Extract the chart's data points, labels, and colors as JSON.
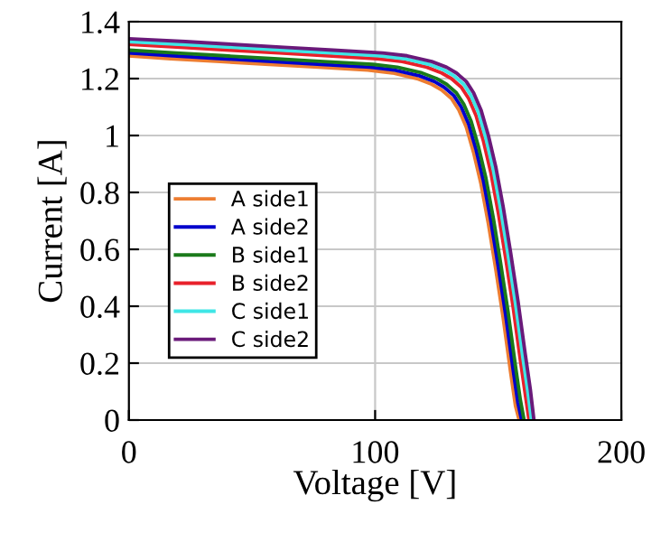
{
  "chart_data": {
    "type": "line",
    "xlabel": "Voltage [V]",
    "ylabel": "Current [A]",
    "series": [
      {
        "name": "A side1",
        "color": "#ed7d31",
        "x": [
          0,
          17,
          37,
          57,
          77,
          97,
          107,
          117,
          123,
          127,
          131,
          134,
          137,
          140,
          143,
          146,
          149,
          152,
          155,
          157,
          158.5
        ],
        "values": [
          1.28,
          1.27,
          1.26,
          1.25,
          1.24,
          1.23,
          1.22,
          1.2,
          1.18,
          1.16,
          1.13,
          1.09,
          1.03,
          0.94,
          0.83,
          0.69,
          0.53,
          0.36,
          0.17,
          0.05,
          0
        ]
      },
      {
        "name": "A side2",
        "color": "#0000cc",
        "x": [
          0,
          18,
          38,
          58,
          78,
          98,
          108,
          118,
          124,
          128,
          132,
          135,
          138,
          141,
          144,
          147,
          150,
          153,
          156,
          158,
          159.5
        ],
        "values": [
          1.29,
          1.28,
          1.27,
          1.26,
          1.25,
          1.24,
          1.23,
          1.21,
          1.19,
          1.17,
          1.14,
          1.1,
          1.04,
          0.95,
          0.84,
          0.7,
          0.54,
          0.37,
          0.18,
          0.06,
          0
        ]
      },
      {
        "name": "B side1",
        "color": "#1a7a1a",
        "x": [
          0,
          19,
          39,
          59,
          79,
          99,
          109,
          119,
          125,
          129,
          133,
          136,
          139,
          142,
          145,
          148,
          151,
          154,
          157,
          159,
          160.5
        ],
        "values": [
          1.3,
          1.29,
          1.28,
          1.27,
          1.26,
          1.25,
          1.24,
          1.22,
          1.2,
          1.18,
          1.15,
          1.11,
          1.05,
          0.96,
          0.85,
          0.71,
          0.55,
          0.38,
          0.19,
          0.07,
          0
        ]
      },
      {
        "name": "B side2",
        "color": "#e8202a",
        "x": [
          0,
          21,
          41,
          61,
          81,
          101,
          111,
          121,
          127,
          131,
          135,
          138,
          141,
          144,
          147,
          150,
          153,
          156,
          159,
          161,
          162.5
        ],
        "values": [
          1.32,
          1.31,
          1.3,
          1.29,
          1.28,
          1.27,
          1.26,
          1.24,
          1.22,
          1.2,
          1.17,
          1.13,
          1.07,
          0.98,
          0.87,
          0.73,
          0.57,
          0.4,
          0.21,
          0.09,
          0
        ]
      },
      {
        "name": "C side1",
        "color": "#3ee6e6",
        "x": [
          0,
          22,
          42,
          62,
          82,
          102,
          112,
          122,
          128,
          132,
          136,
          139,
          142,
          145,
          148,
          151,
          154,
          157,
          160,
          162,
          163.5
        ],
        "values": [
          1.33,
          1.32,
          1.31,
          1.3,
          1.29,
          1.28,
          1.27,
          1.25,
          1.23,
          1.21,
          1.18,
          1.14,
          1.08,
          0.99,
          0.88,
          0.74,
          0.58,
          0.41,
          0.22,
          0.1,
          0
        ]
      },
      {
        "name": "C side2",
        "color": "#6a1a7a",
        "x": [
          0,
          23,
          43,
          63,
          83,
          103,
          113,
          123,
          129,
          133,
          137,
          140,
          143,
          146,
          149,
          152,
          155,
          158,
          161,
          163,
          164.5
        ],
        "values": [
          1.34,
          1.33,
          1.32,
          1.31,
          1.3,
          1.29,
          1.28,
          1.26,
          1.24,
          1.22,
          1.19,
          1.15,
          1.09,
          1.0,
          0.89,
          0.75,
          0.59,
          0.42,
          0.23,
          0.11,
          0
        ]
      }
    ],
    "xlim": [
      0,
      200
    ],
    "xticks": [
      0,
      100,
      200
    ],
    "ylim": [
      0,
      1.4
    ],
    "yticks": [
      0,
      {
        "value": 0.2,
        "label": "0.2"
      },
      {
        "value": 0.4,
        "label": "0.4"
      },
      {
        "value": 0.6,
        "label": "0.6"
      },
      {
        "value": 0.8,
        "label": "0.8"
      },
      1,
      {
        "value": 1.2,
        "label": "1.2"
      },
      {
        "value": 1.4,
        "label": "1.4"
      }
    ],
    "grid": true,
    "legend": "center left",
    "marker": "none",
    "line_style": "solid"
  }
}
